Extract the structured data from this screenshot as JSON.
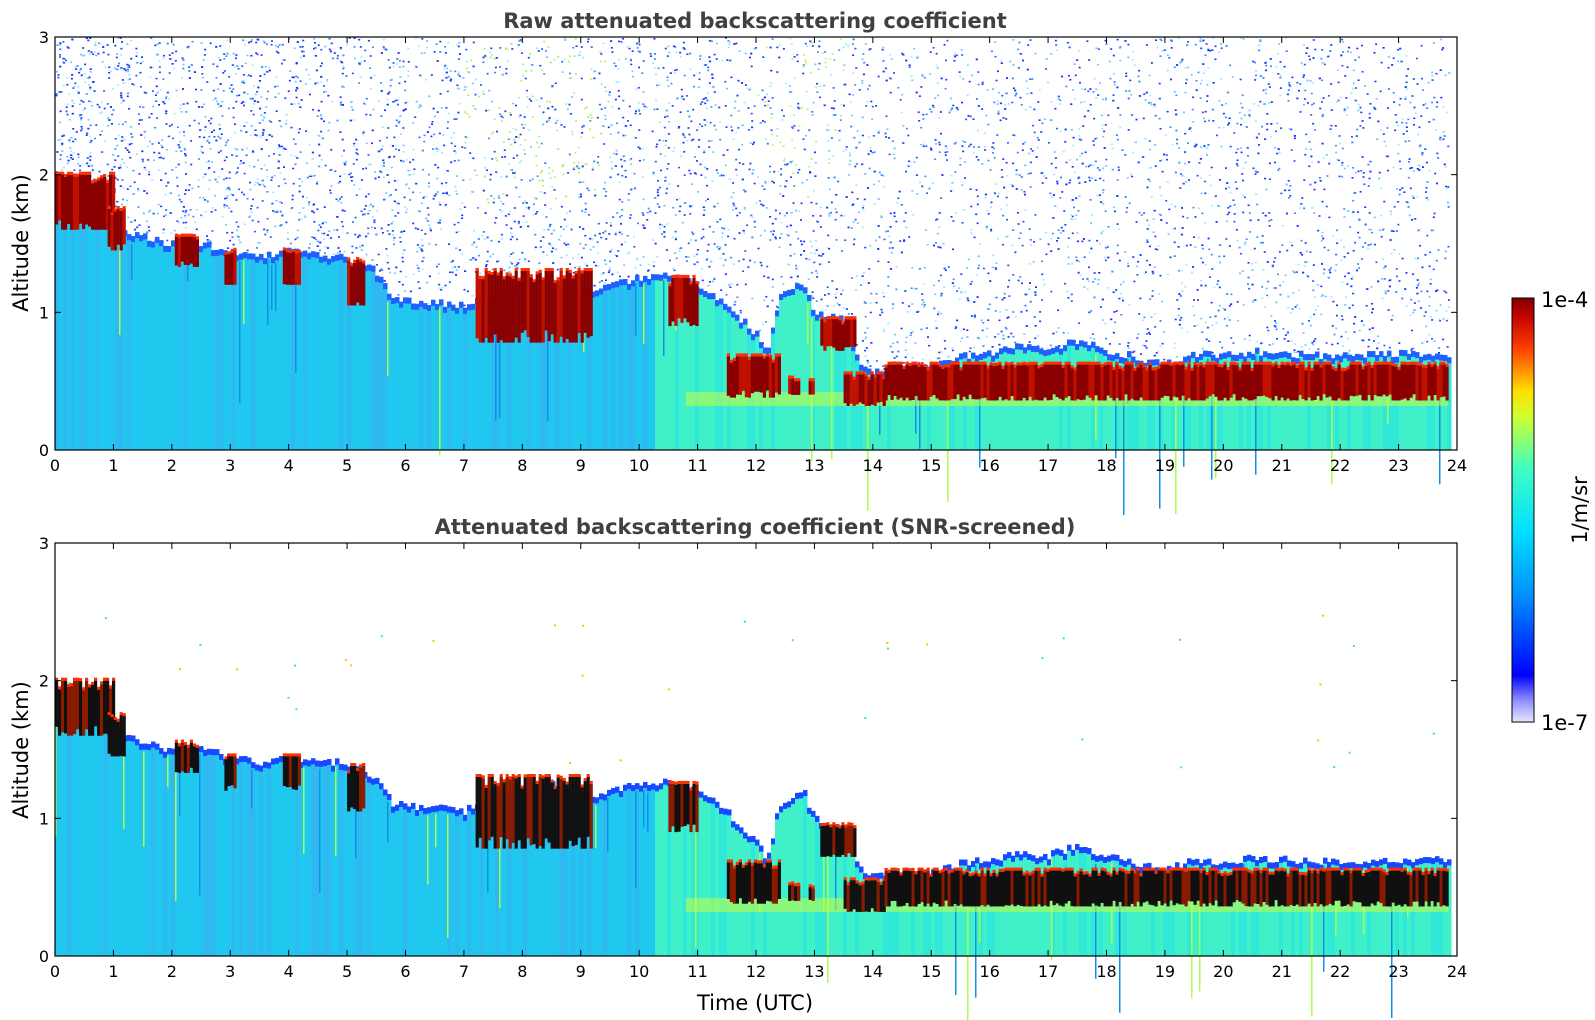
{
  "chart_data": [
    {
      "type": "heatmap",
      "title": "Raw attenuated backscattering coefficient",
      "xlabel": "",
      "ylabel": "Altitude (km)",
      "xlim": [
        0,
        24
      ],
      "ylim": [
        0,
        3
      ],
      "xticks": [
        "0",
        "1",
        "2",
        "3",
        "4",
        "5",
        "6",
        "7",
        "8",
        "9",
        "10",
        "11",
        "12",
        "13",
        "14",
        "15",
        "16",
        "17",
        "18",
        "19",
        "20",
        "21",
        "22",
        "23",
        "24"
      ],
      "yticks": [
        "0",
        "1",
        "2",
        "3"
      ],
      "data_extent_x": [
        0,
        23.85
      ],
      "screened": false
    },
    {
      "type": "heatmap",
      "title": "Attenuated backscattering coefficient (SNR-screened)",
      "xlabel": "Time (UTC)",
      "ylabel": "Altitude (km)",
      "xlim": [
        0,
        24
      ],
      "ylim": [
        0,
        3
      ],
      "xticks": [
        "0",
        "1",
        "2",
        "3",
        "4",
        "5",
        "6",
        "7",
        "8",
        "9",
        "10",
        "11",
        "12",
        "13",
        "14",
        "15",
        "16",
        "17",
        "18",
        "19",
        "20",
        "21",
        "22",
        "23",
        "24"
      ],
      "yticks": [
        "0",
        "1",
        "2",
        "3"
      ],
      "data_extent_x": [
        0,
        23.85
      ],
      "screened": true
    }
  ],
  "colorbar": {
    "label": "1/m/sr",
    "max_label": "1e-4",
    "min_label": "1e-7",
    "scale": "log",
    "range": [
      1e-07,
      0.0001
    ],
    "colormap": "jet"
  },
  "profile": {
    "cloud_top_km": [
      [
        0,
        1.95
      ],
      [
        0.5,
        1.85
      ],
      [
        1,
        1.65
      ],
      [
        1.5,
        1.55
      ],
      [
        2,
        1.5
      ],
      [
        2.5,
        1.5
      ],
      [
        3,
        1.45
      ],
      [
        3.5,
        1.4
      ],
      [
        4,
        1.45
      ],
      [
        4.5,
        1.42
      ],
      [
        5,
        1.4
      ],
      [
        5.5,
        1.3
      ],
      [
        5.8,
        1.1
      ],
      [
        6.5,
        1.08
      ],
      [
        7,
        1.05
      ],
      [
        7.5,
        1.15
      ],
      [
        8,
        1.2
      ],
      [
        8.5,
        1.25
      ],
      [
        9,
        1.15
      ],
      [
        9.5,
        1.2
      ],
      [
        10,
        1.25
      ],
      [
        10.5,
        1.28
      ],
      [
        11,
        1.2
      ],
      [
        11.5,
        1.05
      ],
      [
        12,
        0.85
      ],
      [
        12.2,
        0.7
      ],
      [
        12.4,
        1.1
      ],
      [
        12.8,
        1.22
      ],
      [
        13,
        1.0
      ],
      [
        13.5,
        0.95
      ],
      [
        13.8,
        0.62
      ],
      [
        14,
        0.58
      ],
      [
        15,
        0.6
      ],
      [
        15.5,
        0.68
      ],
      [
        16,
        0.7
      ],
      [
        16.5,
        0.75
      ],
      [
        17,
        0.73
      ],
      [
        17.5,
        0.8
      ],
      [
        18,
        0.72
      ],
      [
        18.5,
        0.68
      ],
      [
        19,
        0.62
      ],
      [
        19.5,
        0.7
      ],
      [
        20,
        0.68
      ],
      [
        20.5,
        0.72
      ],
      [
        21,
        0.7
      ],
      [
        22,
        0.68
      ],
      [
        23,
        0.7
      ],
      [
        23.85,
        0.7
      ]
    ],
    "cloud_layers": [
      [
        0,
        1.0,
        1.6,
        2.0
      ],
      [
        0.9,
        1.2,
        1.45,
        1.75
      ],
      [
        2.05,
        2.45,
        1.33,
        1.55
      ],
      [
        2.9,
        3.1,
        1.2,
        1.45
      ],
      [
        3.9,
        4.2,
        1.2,
        1.45
      ],
      [
        5.0,
        5.3,
        1.05,
        1.38
      ],
      [
        7.2,
        9.2,
        0.78,
        1.3
      ],
      [
        10.5,
        11.0,
        0.9,
        1.25
      ],
      [
        11.5,
        12.4,
        0.38,
        0.68
      ],
      [
        12.55,
        12.75,
        0.4,
        0.52
      ],
      [
        12.9,
        13.0,
        0.4,
        0.5
      ],
      [
        13.1,
        13.7,
        0.72,
        0.95
      ],
      [
        13.5,
        14.2,
        0.32,
        0.55
      ],
      [
        14.2,
        23.85,
        0.36,
        0.62
      ]
    ]
  }
}
